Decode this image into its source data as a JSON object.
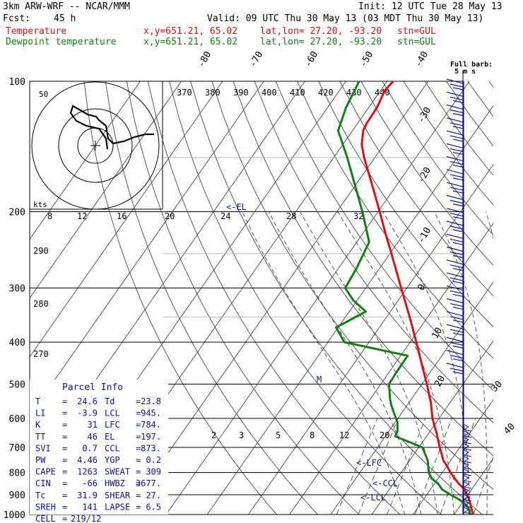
{
  "header": {
    "model": "3km ARW-WRF -- NCAR/MMM",
    "init": "Init: 12 UTC Tue 28 May 13",
    "fcst_label": "Fcst:",
    "fcst_value": "45 h",
    "valid": "Valid: 09 UTC Thu 30 May 13 (03 MDT Thu 30 May 13)",
    "temp_label": "Temperature",
    "dew_label": "Dewpoint temperature",
    "xy": "x,y=651.21, 65.02",
    "latlon": "lat,lon= 27.20, -93.20",
    "stn": "stn=GUL"
  },
  "colors": {
    "temperature": "#e01010",
    "dewpoint": "#108010",
    "wind": "#1010a0",
    "text": "#000000"
  },
  "chart_data": {
    "type": "line",
    "subtype": "skew-T log-P sounding",
    "yscale": "log pressure (inverted)",
    "ylim": [
      1000,
      100
    ],
    "pressure_ticks": [
      100,
      200,
      300,
      400,
      500,
      600,
      700,
      800,
      900,
      1000
    ],
    "temp_line_labels": [
      "-80",
      "-70",
      "-60",
      "-50",
      "-40",
      "-30",
      "-20",
      "-10",
      "0",
      "10",
      "20",
      "30",
      "40"
    ],
    "theta_labels": [
      "370",
      "380",
      "390",
      "400",
      "410",
      "420",
      "430",
      "440"
    ],
    "theta_left_labels": [
      "290",
      "280",
      "270"
    ],
    "mixing_ratio_labels": [
      "2",
      "3",
      "5",
      "8",
      "12",
      "20"
    ],
    "hodo_speed_labels": [
      "8",
      "12",
      "16",
      "20",
      "24",
      "28",
      "32"
    ],
    "hodo_kts": "kts",
    "hodo_ring_label": "50",
    "barb_legend": [
      "Full barb:",
      "5 m s"
    ],
    "markers": {
      "el": "<-EL",
      "m": "M",
      "lfc": "<-LFC",
      "ccl": "<-CCL",
      "lcl": "<-LCL"
    },
    "series": [
      {
        "name": "Temperature",
        "points": [
          [
            1000,
            24.6
          ],
          [
            975,
            23.5
          ],
          [
            950,
            22.4
          ],
          [
            925,
            21.2
          ],
          [
            900,
            19.8
          ],
          [
            875,
            18.3
          ],
          [
            850,
            16.0
          ],
          [
            825,
            14.0
          ],
          [
            800,
            12.0
          ],
          [
            775,
            10.2
          ],
          [
            750,
            8.2
          ],
          [
            700,
            5.1
          ],
          [
            650,
            2.0
          ],
          [
            600,
            -1.6
          ],
          [
            550,
            -4.8
          ],
          [
            500,
            -8.8
          ],
          [
            450,
            -13.4
          ],
          [
            400,
            -18.5
          ],
          [
            350,
            -24.4
          ],
          [
            300,
            -31.4
          ],
          [
            250,
            -39.6
          ],
          [
            225,
            -44.4
          ],
          [
            200,
            -49.6
          ],
          [
            175,
            -55.6
          ],
          [
            150,
            -62.6
          ],
          [
            140,
            -65.4
          ],
          [
            130,
            -67.4
          ],
          [
            125,
            -67.8
          ],
          [
            115,
            -68.0
          ],
          [
            105,
            -69.0
          ],
          [
            100,
            -68.5
          ]
        ]
      },
      {
        "name": "Dewpoint temperature",
        "points": [
          [
            1000,
            23.8
          ],
          [
            975,
            22.9
          ],
          [
            950,
            21.3
          ],
          [
            925,
            18.9
          ],
          [
            900,
            15.8
          ],
          [
            875,
            12.8
          ],
          [
            850,
            11.0
          ],
          [
            825,
            8.4
          ],
          [
            800,
            6.7
          ],
          [
            750,
            4.4
          ],
          [
            700,
            0.9
          ],
          [
            660,
            -7.6
          ],
          [
            640,
            -8.0
          ],
          [
            610,
            -9.6
          ],
          [
            590,
            -11.3
          ],
          [
            560,
            -13.8
          ],
          [
            540,
            -15.3
          ],
          [
            500,
            -18.0
          ],
          [
            470,
            -18.2
          ],
          [
            430,
            -18.3
          ],
          [
            400,
            -36.0
          ],
          [
            370,
            -40.5
          ],
          [
            340,
            -36.0
          ],
          [
            320,
            -41.0
          ],
          [
            300,
            -45.0
          ],
          [
            270,
            -45.6
          ],
          [
            235,
            -47.0
          ],
          [
            200,
            -53.8
          ],
          [
            150,
            -66.7
          ],
          [
            130,
            -73.5
          ],
          [
            115,
            -75.5
          ],
          [
            100,
            -76.8
          ]
        ]
      }
    ]
  },
  "parcel_info": {
    "title": "Parcel Info",
    "rows": [
      [
        "T",
        "24.6",
        "Td",
        "23.8"
      ],
      [
        "LI",
        "-3.9",
        "LCL",
        "945."
      ],
      [
        "K",
        "31",
        "LFC",
        "784."
      ],
      [
        "TT",
        "46",
        "EL",
        "197."
      ],
      [
        "SVI",
        "0.7",
        "CCL",
        "873."
      ],
      [
        "PW",
        "4.46",
        "YGP",
        "0.2"
      ],
      [
        "CAPE",
        "1263",
        "SWEAT",
        "309"
      ],
      [
        "CIN",
        "-66",
        "HWBZ",
        "3677."
      ],
      [
        "Tc",
        "31.9",
        "SHEAR",
        "27."
      ],
      [
        "SREH",
        "141",
        "LAPSE",
        "6.5"
      ]
    ],
    "cell_label": "CELL",
    "cell_value": "219/12"
  }
}
